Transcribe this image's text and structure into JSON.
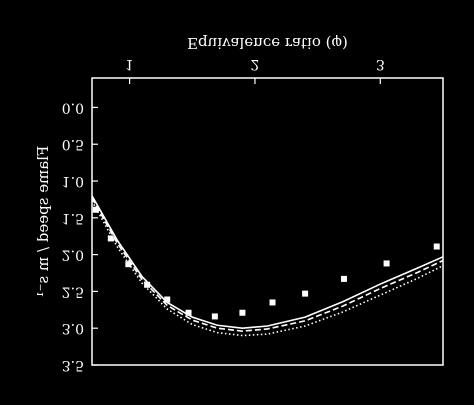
{
  "chart_data": {
    "type": "line",
    "xlabel": "Equivalence ratio (φ)",
    "ylabel": "Flame speed / m s⁻¹",
    "xlim": [
      0.7,
      3.5
    ],
    "xticks": [
      1,
      2,
      3
    ],
    "ylim": [
      -0.4,
      3.5
    ],
    "yticks": [
      {
        "value": 0,
        "label": "0.0"
      },
      0.5,
      {
        "value": 1,
        "label": "1.0"
      },
      1.5,
      {
        "value": 2,
        "label": "2.0"
      },
      2.5,
      {
        "value": 3,
        "label": "3.0"
      },
      3.5
    ],
    "flipped_vertically": true,
    "x": [
      0.7,
      0.9,
      1.1,
      1.3,
      1.5,
      1.7,
      1.9,
      2.1,
      2.4,
      2.7,
      3.0,
      3.3,
      3.5
    ],
    "series": [
      {
        "color": "#ffffff",
        "dash": "solid",
        "values": [
          1.2,
          1.8,
          2.3,
          2.65,
          2.85,
          2.96,
          3.0,
          2.97,
          2.85,
          2.64,
          2.4,
          2.18,
          2.03
        ]
      },
      {
        "color": "#ffffff",
        "dash": "dashed",
        "values": [
          1.23,
          1.84,
          2.34,
          2.69,
          2.89,
          3.0,
          3.04,
          3.01,
          2.9,
          2.7,
          2.46,
          2.24,
          2.08
        ]
      },
      {
        "color": "#ffffff",
        "dash": "dotted",
        "values": [
          1.27,
          1.89,
          2.39,
          2.74,
          2.95,
          3.06,
          3.1,
          3.08,
          2.97,
          2.78,
          2.55,
          2.32,
          2.15
        ]
      }
    ],
    "markers": {
      "shape": "square",
      "color": "#ffffff",
      "x": [
        0.73,
        0.85,
        0.99,
        1.14,
        1.3,
        1.47,
        1.68,
        1.9,
        2.14,
        2.4,
        2.71,
        3.05,
        3.45
      ],
      "values": [
        1.39,
        1.78,
        2.13,
        2.41,
        2.61,
        2.79,
        2.84,
        2.79,
        2.65,
        2.53,
        2.33,
        2.12,
        1.89
      ]
    }
  }
}
